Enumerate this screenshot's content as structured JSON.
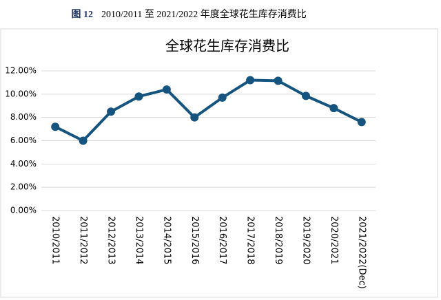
{
  "figure": {
    "number": "图 12",
    "caption": "2010/2011 至 2021/2022 年度全球花生库存消费比"
  },
  "chart_data": {
    "type": "line",
    "title": "全球花生库存消费比",
    "categories": [
      "2010/2011",
      "2011/2012",
      "2012/2013",
      "2013/2014",
      "2014/2015",
      "2015/2016",
      "2016/2017",
      "2017/2018",
      "2018/2019",
      "2019/2020",
      "2020/2021",
      "2021/2022(Dec)"
    ],
    "values": [
      7.2,
      6.0,
      8.5,
      9.8,
      10.4,
      8.0,
      9.7,
      11.2,
      11.15,
      9.85,
      8.8,
      7.6
    ],
    "color": "#14547e",
    "ylim": [
      0,
      12
    ],
    "yticks": [
      {
        "value": 0,
        "label": "0.00%"
      },
      {
        "value": 2,
        "label": "2.00%"
      },
      {
        "value": 4,
        "label": "4.00%"
      },
      {
        "value": 6,
        "label": "6.00%"
      },
      {
        "value": 8,
        "label": "8.00%"
      },
      {
        "value": 10,
        "label": "10.00%"
      },
      {
        "value": 12,
        "label": "12.00%"
      }
    ],
    "grid": true
  }
}
